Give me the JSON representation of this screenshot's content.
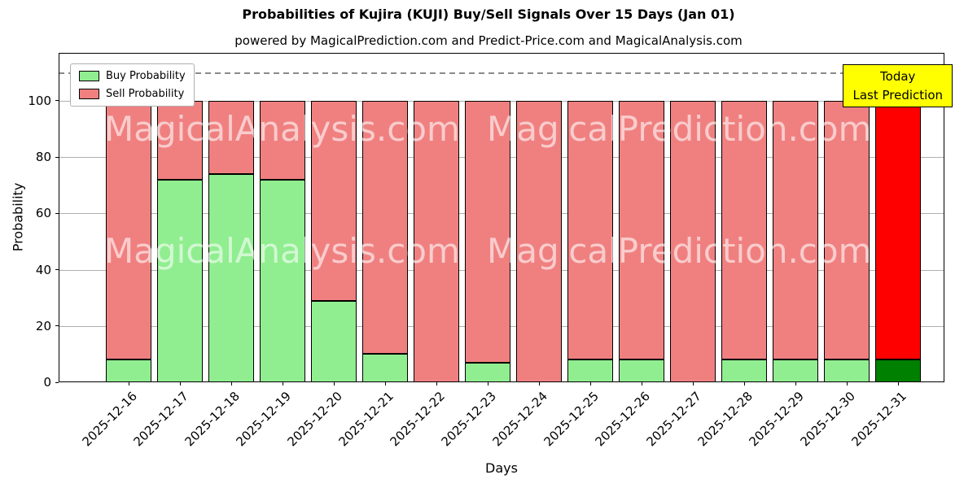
{
  "chart_data": {
    "type": "bar",
    "stacked": true,
    "title": "Probabilities of Kujira (KUJI) Buy/Sell Signals Over 15 Days (Jan 01)",
    "subtitle": "powered by MagicalPrediction.com and Predict-Price.com and MagicalAnalysis.com",
    "xlabel": "Days",
    "ylabel": "Probability",
    "ylim": [
      0,
      117
    ],
    "yticks": [
      0,
      20,
      40,
      60,
      80,
      100
    ],
    "dashed_line_y": 110,
    "grid": true,
    "categories": [
      "2025-12-16",
      "2025-12-17",
      "2025-12-18",
      "2025-12-19",
      "2025-12-20",
      "2025-12-21",
      "2025-12-22",
      "2025-12-23",
      "2025-12-24",
      "2025-12-25",
      "2025-12-26",
      "2025-12-27",
      "2025-12-28",
      "2025-12-29",
      "2025-12-30",
      "2025-12-31"
    ],
    "series": [
      {
        "name": "Buy Probability",
        "color": "#90ee90",
        "values": [
          8,
          72,
          74,
          72,
          29,
          10,
          0,
          7,
          0,
          8,
          8,
          0,
          8,
          8,
          8,
          8
        ]
      },
      {
        "name": "Sell Probability",
        "color": "#f08080",
        "values": [
          92,
          28,
          26,
          28,
          71,
          90,
          100,
          93,
          100,
          92,
          92,
          100,
          92,
          92,
          92,
          92
        ]
      }
    ],
    "today_bar": {
      "index": 15,
      "buy_color": "#008000",
      "sell_color": "#ff0000"
    },
    "legend": {
      "position": "upper-left"
    },
    "annotation": {
      "lines": [
        "Today",
        "Last Prediction"
      ],
      "bg": "#ffff00"
    },
    "watermarks": [
      "MagicalAnalysis.com",
      "MagicalPrediction.com"
    ]
  }
}
